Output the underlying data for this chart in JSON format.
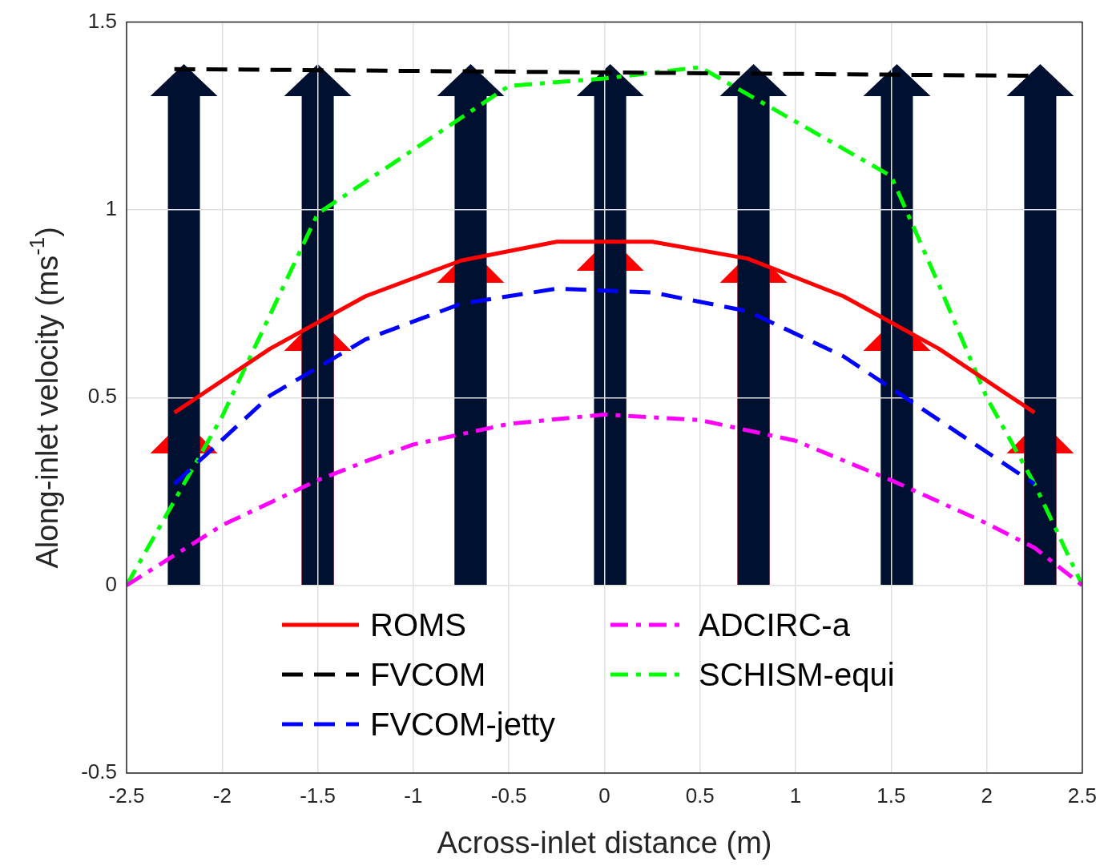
{
  "chart_data": {
    "type": "line",
    "xlabel": "Across-inlet distance (m)",
    "ylabel": "Along-inlet velocity (ms$^{-1}$)",
    "xlim": [
      -2.5,
      2.5
    ],
    "xticks": [
      -2.5,
      -2,
      -1.5,
      -1,
      -0.5,
      0,
      0.5,
      1,
      1.5,
      2,
      2.5
    ],
    "ylim": [
      -0.5,
      1.5
    ],
    "yticks": [
      -0.5,
      0,
      0.5,
      1,
      1.5
    ],
    "grid": true,
    "legend": "bottom",
    "marker": "none",
    "series": [
      {
        "name": "ROMS",
        "color": "#ff0000",
        "line_style": "solid",
        "x": [
          -2.25,
          -1.75,
          -1.25,
          -0.75,
          -0.25,
          0.25,
          0.75,
          1.25,
          1.75,
          2.25
        ],
        "values": [
          0.46,
          0.63,
          0.77,
          0.865,
          0.915,
          0.915,
          0.87,
          0.77,
          0.63,
          0.46
        ]
      },
      {
        "name": "FVCOM",
        "color": "#000000",
        "line_style": "dashed",
        "x": [
          -2.25,
          2.25
        ],
        "values": [
          1.375,
          1.357
        ]
      },
      {
        "name": "FVCOM-jetty",
        "color": "#0000ff",
        "line_style": "dashed",
        "x": [
          -2.25,
          -1.75,
          -1.25,
          -0.75,
          -0.25,
          0.25,
          0.75,
          1.25,
          1.75,
          2.25
        ],
        "values": [
          0.27,
          0.505,
          0.655,
          0.75,
          0.79,
          0.78,
          0.73,
          0.61,
          0.44,
          0.27
        ]
      },
      {
        "name": "ADCIRC-a",
        "color": "#ff00ff",
        "line_style": "dashdot",
        "x": [
          -2.5,
          -2,
          -1.5,
          -1.25,
          -1,
          -0.5,
          0,
          0.5,
          1,
          1.5,
          2,
          2.25,
          2.5
        ],
        "values": [
          0,
          0.16,
          0.28,
          0.33,
          0.375,
          0.43,
          0.455,
          0.44,
          0.385,
          0.28,
          0.165,
          0.1,
          0
        ]
      },
      {
        "name": "SCHISM-equi",
        "color": "#00ff00",
        "line_style": "dashdot",
        "x": [
          -2.5,
          -2,
          -1.5,
          -0.5,
          0,
          0.5,
          1.5,
          1.75,
          2,
          2.25,
          2.5
        ],
        "values": [
          0,
          0.45,
          0.99,
          1.33,
          1.35,
          1.38,
          1.09,
          0.8,
          0.5,
          0.27,
          0
        ]
      }
    ]
  }
}
